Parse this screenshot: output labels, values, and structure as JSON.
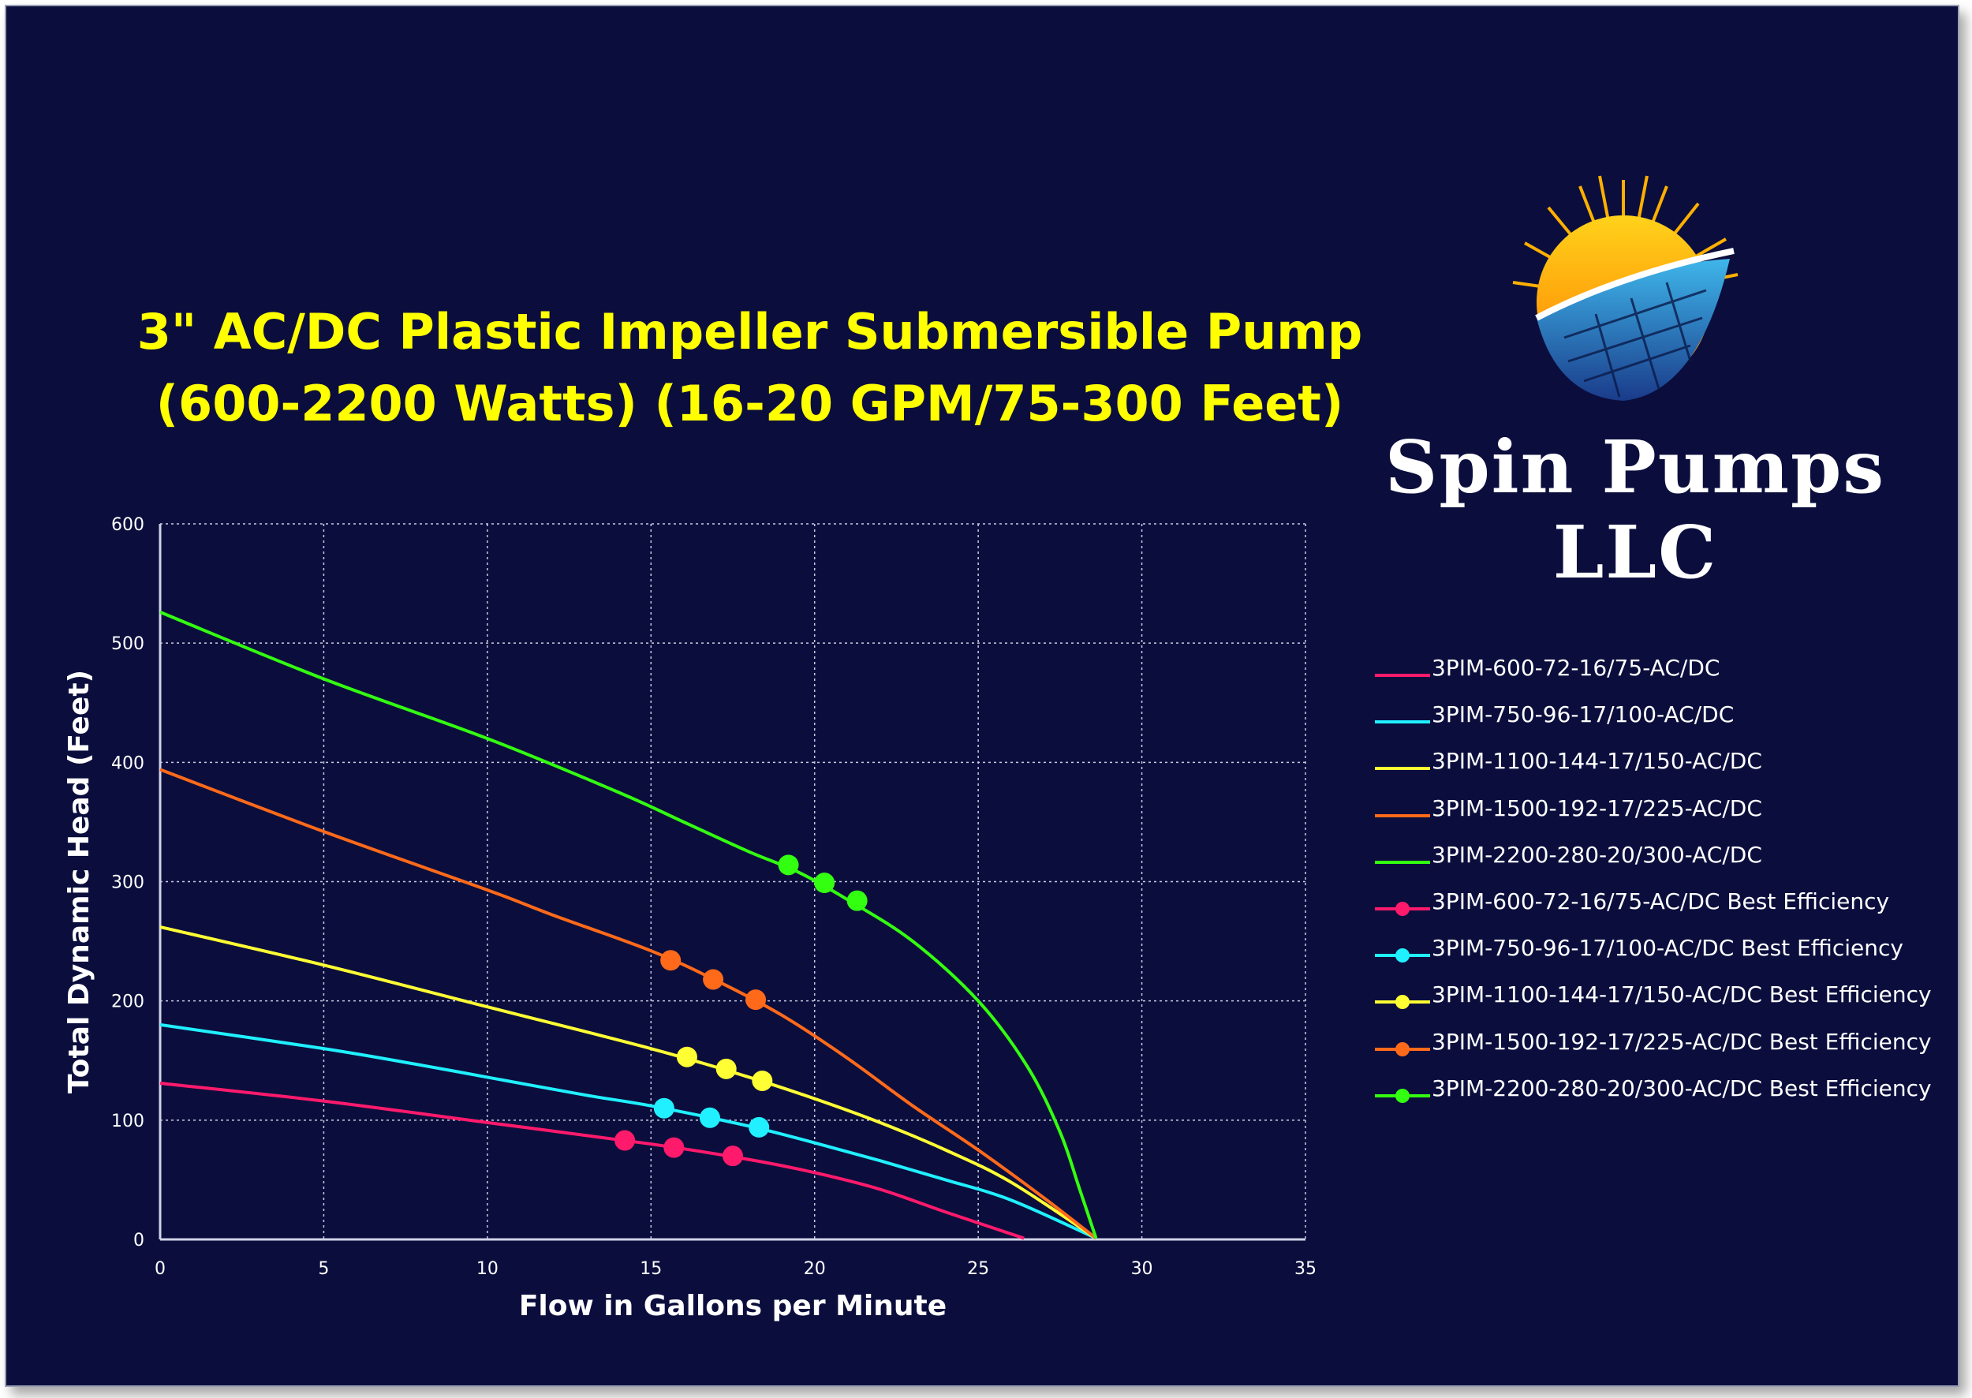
{
  "brand": {
    "name": "Spin Pumps LLC"
  },
  "title_lines": [
    "3\" AC/DC Plastic Impeller Submersible Pump",
    "(600-2200 Watts) (16-20 GPM/75-300 Feet)"
  ],
  "chart_data": {
    "type": "line",
    "title": "3\" AC/DC Plastic Impeller Submersible Pump (600-2200 Watts) (16-20 GPM/75-300 Feet)",
    "xlabel": "Flow in Gallons per Minute",
    "ylabel": "Total Dynamic Head (Feet)",
    "xlim": [
      0,
      35
    ],
    "ylim": [
      0,
      600
    ],
    "xticks": [
      0,
      5,
      10,
      15,
      20,
      25,
      30,
      35
    ],
    "yticks": [
      0,
      100,
      200,
      300,
      400,
      500,
      600
    ],
    "grid": true,
    "legend_position": "right",
    "background_color": "#0b0e3d",
    "series": [
      {
        "name": "3PIM-600-72-16/75-AC/DC",
        "color": "#ff1a6c",
        "kind": "curve",
        "x": [
          0,
          5,
          10,
          15,
          18,
          20,
          22,
          24,
          26.4
        ],
        "y": [
          131,
          116,
          98,
          80,
          67,
          56,
          42,
          23,
          1
        ]
      },
      {
        "name": "3PIM-750-96-17/100-AC/DC",
        "color": "#20f0ff",
        "kind": "curve",
        "x": [
          0,
          5,
          8,
          10,
          13,
          15,
          18,
          20,
          22,
          24,
          26,
          28.6
        ],
        "y": [
          180,
          160,
          146,
          136,
          121,
          112,
          95,
          81,
          66,
          50,
          33,
          1
        ]
      },
      {
        "name": "3PIM-1100-144-17/150-AC/DC",
        "color": "#ffff33",
        "kind": "curve",
        "x": [
          0,
          5,
          10,
          15,
          18,
          20,
          22,
          24,
          26,
          28.6
        ],
        "y": [
          262,
          230,
          195,
          160,
          136,
          118,
          98,
          75,
          48,
          1
        ]
      },
      {
        "name": "3PIM-1500-192-17/225-AC/DC",
        "color": "#ff6a1a",
        "kind": "curve",
        "x": [
          0,
          5,
          10,
          12,
          15,
          17,
          19,
          21,
          23,
          25,
          27,
          28.6
        ],
        "y": [
          394,
          342,
          293,
          272,
          242,
          217,
          188,
          152,
          112,
          75,
          35,
          1
        ]
      },
      {
        "name": "3PIM-2200-280-20/300-AC/DC",
        "color": "#33ff11",
        "kind": "curve",
        "x": [
          0,
          5,
          10,
          14,
          16,
          18,
          19.5,
          21,
          23,
          25,
          26.5,
          27.5,
          28.1,
          28.6
        ],
        "y": [
          526,
          470,
          420,
          375,
          350,
          325,
          308,
          285,
          250,
          200,
          145,
          90,
          42,
          1
        ]
      },
      {
        "name": "3PIM-600-72-16/75-AC/DC Best Efficiency",
        "color": "#ff1a6c",
        "kind": "points",
        "x": [
          14.2,
          15.7,
          17.5
        ],
        "y": [
          83,
          77,
          70
        ]
      },
      {
        "name": "3PIM-750-96-17/100-AC/DC Best Efficiency",
        "color": "#20f0ff",
        "kind": "points",
        "x": [
          15.4,
          16.8,
          18.3
        ],
        "y": [
          110,
          102,
          94
        ]
      },
      {
        "name": "3PIM-1100-144-17/150-AC/DC Best Efficiency",
        "color": "#ffff33",
        "kind": "points",
        "x": [
          16.1,
          17.3,
          18.4
        ],
        "y": [
          153,
          143,
          133
        ]
      },
      {
        "name": "3PIM-1500-192-17/225-AC/DC Best Efficiency",
        "color": "#ff6a1a",
        "kind": "points",
        "x": [
          15.6,
          16.9,
          18.2
        ],
        "y": [
          234,
          218,
          201
        ]
      },
      {
        "name": "3PIM-2200-280-20/300-AC/DC Best Efficiency",
        "color": "#33ff11",
        "kind": "points",
        "x": [
          19.2,
          20.3,
          21.3
        ],
        "y": [
          314,
          299,
          284
        ]
      }
    ]
  }
}
